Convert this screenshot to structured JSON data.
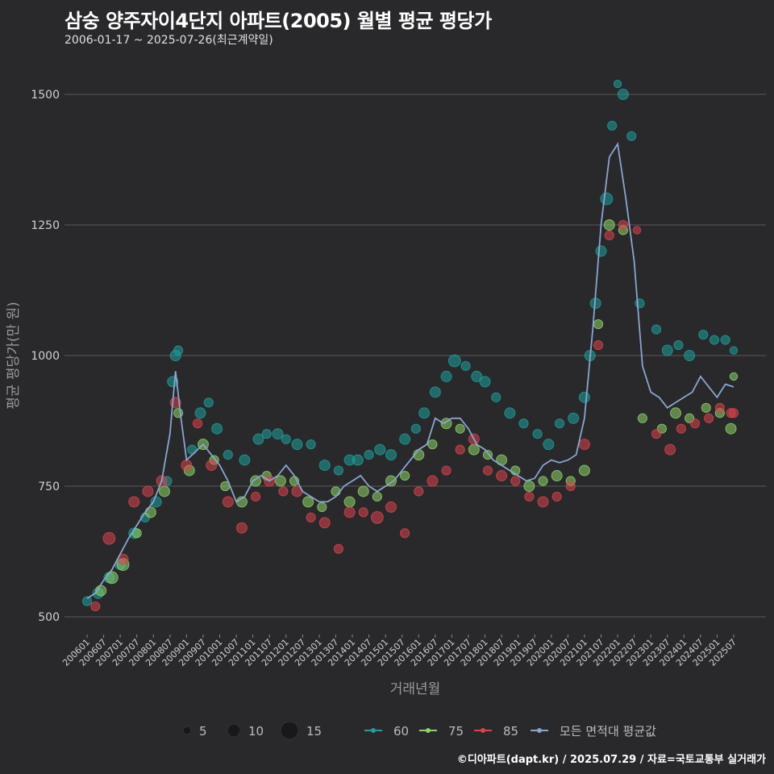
{
  "header": {
    "title": "삼숭 양주자이4단지 아파트(2005) 월별 평균 평당가",
    "subtitle": "2006-01-17 ~ 2025-07-26(최근계약일)"
  },
  "footer": {
    "credit": "©디아파트(dapt.kr) / 2025.07.29 / 자료=국토교통부 실거래가"
  },
  "colors": {
    "background": "#29282b",
    "grid": "#5a595c",
    "s60": "#1f9e9a",
    "s75": "#8ed36a",
    "s85": "#d9444e",
    "avg": "#8aa6cf"
  },
  "legend": {
    "size_entries": [
      {
        "label": "5",
        "value": 5
      },
      {
        "label": "10",
        "value": 10
      },
      {
        "label": "15",
        "value": 15
      }
    ],
    "series_entries": [
      {
        "label": "60",
        "key": "s60"
      },
      {
        "label": "75",
        "key": "s75"
      },
      {
        "label": "85",
        "key": "s85"
      },
      {
        "label": "모든 면적대 평균값",
        "key": "avg"
      }
    ]
  },
  "chart_data": {
    "type": "scatter",
    "xlabel": "거래년월",
    "ylabel": "평균 평당가(만 원)",
    "ylim": [
      500,
      1500
    ],
    "yticks": [
      500,
      750,
      1000,
      1250,
      1500
    ],
    "xlim": [
      "2006-01",
      "2025-07"
    ],
    "xticks": [
      "200601",
      "200607",
      "200701",
      "200707",
      "200801",
      "200807",
      "200901",
      "200907",
      "201001",
      "201007",
      "201101",
      "201107",
      "201201",
      "201207",
      "201301",
      "201307",
      "201401",
      "201407",
      "201501",
      "201507",
      "201601",
      "201607",
      "201701",
      "201707",
      "201801",
      "201807",
      "201901",
      "201907",
      "202001",
      "202007",
      "202101",
      "202107",
      "202201",
      "202207",
      "202301",
      "202307",
      "202401",
      "202407",
      "202501",
      "202507"
    ],
    "avg_series": {
      "name": "모든 면적대 평균값",
      "points": [
        [
          "2006-01",
          535
        ],
        [
          "2006-04",
          545
        ],
        [
          "2006-07",
          570
        ],
        [
          "2006-10",
          590
        ],
        [
          "2007-01",
          620
        ],
        [
          "2007-04",
          650
        ],
        [
          "2007-07",
          675
        ],
        [
          "2007-10",
          700
        ],
        [
          "2008-01",
          720
        ],
        [
          "2008-04",
          760
        ],
        [
          "2008-07",
          850
        ],
        [
          "2008-09",
          970
        ],
        [
          "2008-11",
          880
        ],
        [
          "2009-01",
          800
        ],
        [
          "2009-04",
          815
        ],
        [
          "2009-07",
          830
        ],
        [
          "2009-10",
          810
        ],
        [
          "2010-01",
          790
        ],
        [
          "2010-04",
          760
        ],
        [
          "2010-07",
          720
        ],
        [
          "2010-10",
          730
        ],
        [
          "2011-01",
          760
        ],
        [
          "2011-04",
          770
        ],
        [
          "2011-07",
          760
        ],
        [
          "2011-10",
          770
        ],
        [
          "2012-01",
          790
        ],
        [
          "2012-04",
          770
        ],
        [
          "2012-07",
          740
        ],
        [
          "2012-10",
          730
        ],
        [
          "2013-01",
          720
        ],
        [
          "2013-04",
          720
        ],
        [
          "2013-07",
          730
        ],
        [
          "2013-10",
          750
        ],
        [
          "2014-01",
          760
        ],
        [
          "2014-04",
          770
        ],
        [
          "2014-07",
          750
        ],
        [
          "2014-10",
          740
        ],
        [
          "2015-01",
          750
        ],
        [
          "2015-04",
          760
        ],
        [
          "2015-07",
          780
        ],
        [
          "2015-10",
          800
        ],
        [
          "2016-01",
          820
        ],
        [
          "2016-04",
          830
        ],
        [
          "2016-07",
          880
        ],
        [
          "2016-10",
          870
        ],
        [
          "2017-01",
          880
        ],
        [
          "2017-04",
          880
        ],
        [
          "2017-07",
          860
        ],
        [
          "2017-10",
          830
        ],
        [
          "2018-01",
          820
        ],
        [
          "2018-04",
          800
        ],
        [
          "2018-07",
          790
        ],
        [
          "2018-10",
          780
        ],
        [
          "2019-01",
          770
        ],
        [
          "2019-04",
          760
        ],
        [
          "2019-07",
          765
        ],
        [
          "2019-10",
          790
        ],
        [
          "2020-01",
          800
        ],
        [
          "2020-04",
          795
        ],
        [
          "2020-07",
          800
        ],
        [
          "2020-10",
          810
        ],
        [
          "2021-01",
          880
        ],
        [
          "2021-04",
          1050
        ],
        [
          "2021-07",
          1250
        ],
        [
          "2021-10",
          1380
        ],
        [
          "2022-01",
          1405
        ],
        [
          "2022-04",
          1300
        ],
        [
          "2022-07",
          1180
        ],
        [
          "2022-10",
          980
        ],
        [
          "2023-01",
          930
        ],
        [
          "2023-04",
          920
        ],
        [
          "2023-07",
          900
        ],
        [
          "2023-10",
          910
        ],
        [
          "2024-01",
          920
        ],
        [
          "2024-04",
          930
        ],
        [
          "2024-07",
          960
        ],
        [
          "2024-10",
          940
        ],
        [
          "2025-01",
          920
        ],
        [
          "2025-04",
          945
        ],
        [
          "2025-07",
          940
        ]
      ]
    },
    "series": [
      {
        "name": "60",
        "points": [
          [
            "2006-01",
            530,
            4
          ],
          [
            "2006-05",
            545,
            5
          ],
          [
            "2006-09",
            575,
            5
          ],
          [
            "2007-01",
            600,
            5
          ],
          [
            "2007-06",
            660,
            5
          ],
          [
            "2007-10",
            690,
            4
          ],
          [
            "2008-02",
            720,
            5
          ],
          [
            "2008-06",
            760,
            4
          ],
          [
            "2008-08",
            950,
            5
          ],
          [
            "2008-09",
            1000,
            5
          ],
          [
            "2008-10",
            1010,
            4
          ],
          [
            "2009-03",
            820,
            4
          ],
          [
            "2009-06",
            890,
            5
          ],
          [
            "2009-09",
            910,
            4
          ],
          [
            "2009-12",
            860,
            5
          ],
          [
            "2010-04",
            810,
            4
          ],
          [
            "2010-10",
            800,
            5
          ],
          [
            "2011-03",
            840,
            5
          ],
          [
            "2011-06",
            850,
            4
          ],
          [
            "2011-10",
            850,
            5
          ],
          [
            "2012-01",
            840,
            4
          ],
          [
            "2012-05",
            830,
            5
          ],
          [
            "2012-10",
            830,
            4
          ],
          [
            "2013-03",
            790,
            5
          ],
          [
            "2013-08",
            780,
            4
          ],
          [
            "2013-12",
            800,
            5
          ],
          [
            "2014-03",
            800,
            5
          ],
          [
            "2014-07",
            810,
            4
          ],
          [
            "2014-11",
            820,
            5
          ],
          [
            "2015-03",
            810,
            5
          ],
          [
            "2015-08",
            840,
            5
          ],
          [
            "2015-12",
            860,
            4
          ],
          [
            "2016-03",
            890,
            5
          ],
          [
            "2016-07",
            930,
            5
          ],
          [
            "2016-11",
            960,
            5
          ],
          [
            "2017-02",
            990,
            6
          ],
          [
            "2017-06",
            980,
            4
          ],
          [
            "2017-10",
            960,
            5
          ],
          [
            "2018-01",
            950,
            5
          ],
          [
            "2018-05",
            920,
            4
          ],
          [
            "2018-10",
            890,
            5
          ],
          [
            "2019-03",
            870,
            4
          ],
          [
            "2019-08",
            850,
            4
          ],
          [
            "2019-12",
            830,
            5
          ],
          [
            "2020-04",
            870,
            4
          ],
          [
            "2020-09",
            880,
            5
          ],
          [
            "2021-01",
            920,
            5
          ],
          [
            "2021-03",
            1000,
            5
          ],
          [
            "2021-05",
            1100,
            5
          ],
          [
            "2021-07",
            1200,
            5
          ],
          [
            "2021-09",
            1300,
            6
          ],
          [
            "2021-11",
            1440,
            4
          ],
          [
            "2022-01",
            1520,
            3
          ],
          [
            "2022-03",
            1500,
            5
          ],
          [
            "2022-06",
            1420,
            4
          ],
          [
            "2022-09",
            1100,
            4
          ],
          [
            "2023-03",
            1050,
            4
          ],
          [
            "2023-07",
            1010,
            5
          ],
          [
            "2023-11",
            1020,
            4
          ],
          [
            "2024-03",
            1000,
            5
          ],
          [
            "2024-08",
            1040,
            4
          ],
          [
            "2024-12",
            1030,
            4
          ],
          [
            "2025-04",
            1030,
            4
          ],
          [
            "2025-07",
            1010,
            3
          ]
        ]
      },
      {
        "name": "75",
        "points": [
          [
            "2006-06",
            550,
            5
          ],
          [
            "2006-10",
            575,
            6
          ],
          [
            "2007-02",
            600,
            6
          ],
          [
            "2007-07",
            660,
            4
          ],
          [
            "2007-12",
            700,
            5
          ],
          [
            "2008-05",
            740,
            5
          ],
          [
            "2008-10",
            890,
            4
          ],
          [
            "2009-02",
            780,
            5
          ],
          [
            "2009-07",
            830,
            5
          ],
          [
            "2009-11",
            800,
            4
          ],
          [
            "2010-03",
            750,
            4
          ],
          [
            "2010-09",
            720,
            5
          ],
          [
            "2011-02",
            760,
            5
          ],
          [
            "2011-06",
            770,
            4
          ],
          [
            "2011-11",
            760,
            5
          ],
          [
            "2012-04",
            760,
            4
          ],
          [
            "2012-09",
            720,
            5
          ],
          [
            "2013-02",
            710,
            4
          ],
          [
            "2013-07",
            740,
            4
          ],
          [
            "2013-12",
            720,
            5
          ],
          [
            "2014-05",
            740,
            5
          ],
          [
            "2014-10",
            730,
            4
          ],
          [
            "2015-03",
            760,
            5
          ],
          [
            "2015-08",
            770,
            4
          ],
          [
            "2016-01",
            810,
            5
          ],
          [
            "2016-06",
            830,
            4
          ],
          [
            "2016-11",
            870,
            5
          ],
          [
            "2017-04",
            860,
            4
          ],
          [
            "2017-09",
            820,
            5
          ],
          [
            "2018-02",
            810,
            4
          ],
          [
            "2018-07",
            800,
            5
          ],
          [
            "2018-12",
            780,
            4
          ],
          [
            "2019-05",
            750,
            5
          ],
          [
            "2019-10",
            760,
            4
          ],
          [
            "2020-03",
            770,
            5
          ],
          [
            "2020-08",
            760,
            4
          ],
          [
            "2021-01",
            780,
            5
          ],
          [
            "2021-06",
            1060,
            4
          ],
          [
            "2021-10",
            1250,
            5
          ],
          [
            "2022-03",
            1240,
            4
          ],
          [
            "2022-10",
            880,
            4
          ],
          [
            "2023-05",
            860,
            4
          ],
          [
            "2023-10",
            890,
            5
          ],
          [
            "2024-03",
            880,
            4
          ],
          [
            "2024-09",
            900,
            4
          ],
          [
            "2025-02",
            890,
            4
          ],
          [
            "2025-06",
            860,
            5
          ],
          [
            "2025-07",
            960,
            3
          ]
        ]
      },
      {
        "name": "85",
        "points": [
          [
            "2006-04",
            520,
            4
          ],
          [
            "2006-09",
            650,
            6
          ],
          [
            "2007-02",
            610,
            5
          ],
          [
            "2007-06",
            720,
            5
          ],
          [
            "2007-11",
            740,
            5
          ],
          [
            "2008-04",
            760,
            5
          ],
          [
            "2008-09",
            910,
            5
          ],
          [
            "2009-01",
            790,
            5
          ],
          [
            "2009-05",
            870,
            4
          ],
          [
            "2009-10",
            790,
            5
          ],
          [
            "2010-04",
            720,
            5
          ],
          [
            "2010-09",
            670,
            5
          ],
          [
            "2011-02",
            730,
            4
          ],
          [
            "2011-07",
            760,
            5
          ],
          [
            "2011-12",
            740,
            4
          ],
          [
            "2012-05",
            740,
            5
          ],
          [
            "2012-10",
            690,
            4
          ],
          [
            "2013-03",
            680,
            5
          ],
          [
            "2013-08",
            630,
            4
          ],
          [
            "2013-12",
            700,
            5
          ],
          [
            "2014-05",
            700,
            4
          ],
          [
            "2014-10",
            690,
            6
          ],
          [
            "2015-03",
            710,
            5
          ],
          [
            "2015-08",
            660,
            4
          ],
          [
            "2016-01",
            740,
            4
          ],
          [
            "2016-06",
            760,
            5
          ],
          [
            "2016-11",
            780,
            4
          ],
          [
            "2017-04",
            820,
            4
          ],
          [
            "2017-09",
            840,
            5
          ],
          [
            "2018-02",
            780,
            4
          ],
          [
            "2018-07",
            770,
            5
          ],
          [
            "2018-12",
            760,
            4
          ],
          [
            "2019-05",
            730,
            4
          ],
          [
            "2019-10",
            720,
            5
          ],
          [
            "2020-03",
            730,
            4
          ],
          [
            "2020-08",
            750,
            4
          ],
          [
            "2021-01",
            830,
            5
          ],
          [
            "2021-06",
            1020,
            4
          ],
          [
            "2021-10",
            1230,
            4
          ],
          [
            "2022-03",
            1250,
            4
          ],
          [
            "2022-08",
            1240,
            3
          ],
          [
            "2023-03",
            850,
            4
          ],
          [
            "2023-08",
            820,
            5
          ],
          [
            "2023-12",
            860,
            4
          ],
          [
            "2024-05",
            870,
            4
          ],
          [
            "2024-10",
            880,
            4
          ],
          [
            "2025-02",
            900,
            4
          ],
          [
            "2025-06",
            890,
            4
          ],
          [
            "2025-07",
            890,
            4
          ]
        ]
      }
    ]
  }
}
